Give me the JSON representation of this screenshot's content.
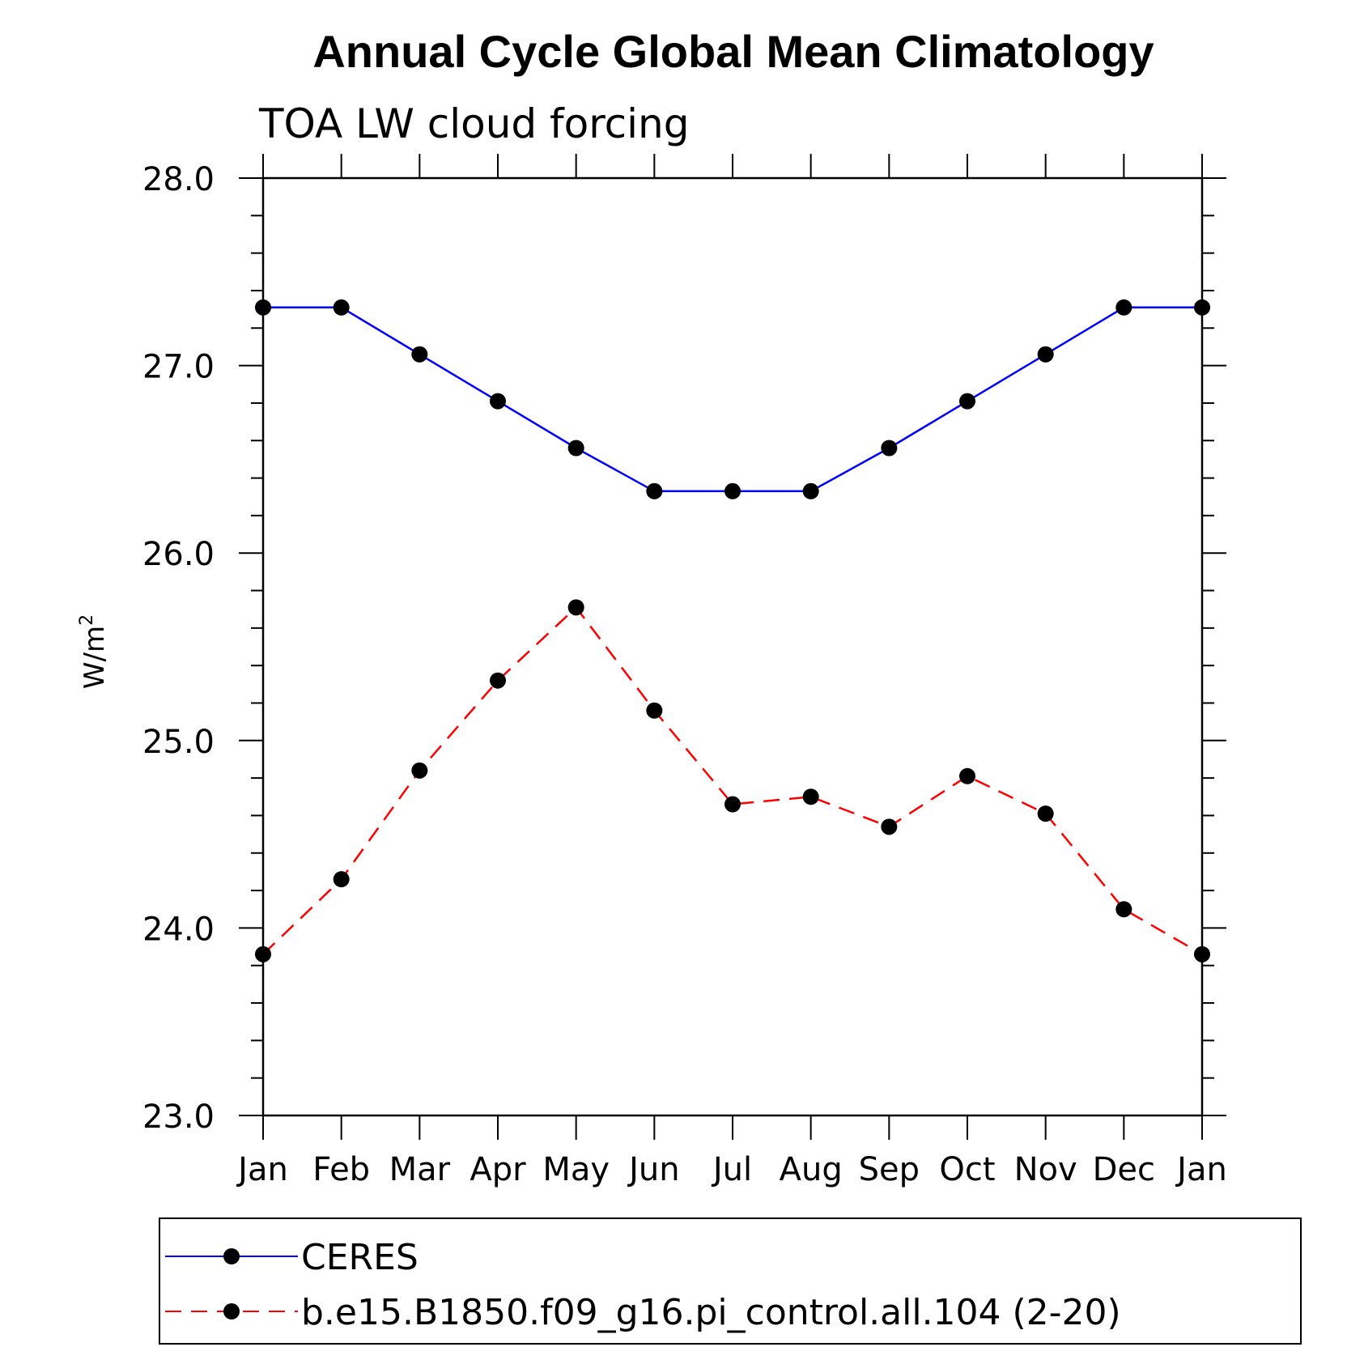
{
  "chart_data": {
    "type": "line",
    "title": "Annual Cycle Global Mean Climatology",
    "subtitle": "TOA LW cloud forcing",
    "ylabel": "W/m",
    "ylabel_superscript": "2",
    "xlabel": "",
    "categories": [
      "Jan",
      "Feb",
      "Mar",
      "Apr",
      "May",
      "Jun",
      "Jul",
      "Aug",
      "Sep",
      "Oct",
      "Nov",
      "Dec",
      "Jan"
    ],
    "ylim": [
      23.0,
      28.0
    ],
    "yticks_major": [
      "23.0",
      "24.0",
      "25.0",
      "26.0",
      "27.0",
      "28.0"
    ],
    "ytick_minor_step": 0.2,
    "grid": false,
    "legend_position": "bottom",
    "series": [
      {
        "name": "CERES",
        "color": "#0000ff",
        "line_style": "solid",
        "marker": "filled-circle",
        "values": [
          27.31,
          27.31,
          27.06,
          26.81,
          26.56,
          26.33,
          26.33,
          26.33,
          26.56,
          26.81,
          27.06,
          27.31,
          27.31
        ]
      },
      {
        "name": "b.e15.B1850.f09_g16.pi_control.all.104 (2-20)",
        "color": "#ff0000",
        "line_style": "dashed",
        "marker": "filled-circle",
        "values": [
          23.86,
          24.26,
          24.84,
          25.32,
          25.71,
          25.16,
          24.66,
          24.7,
          24.54,
          24.81,
          24.61,
          24.1,
          23.86
        ]
      }
    ],
    "marker_color": "#000000"
  }
}
